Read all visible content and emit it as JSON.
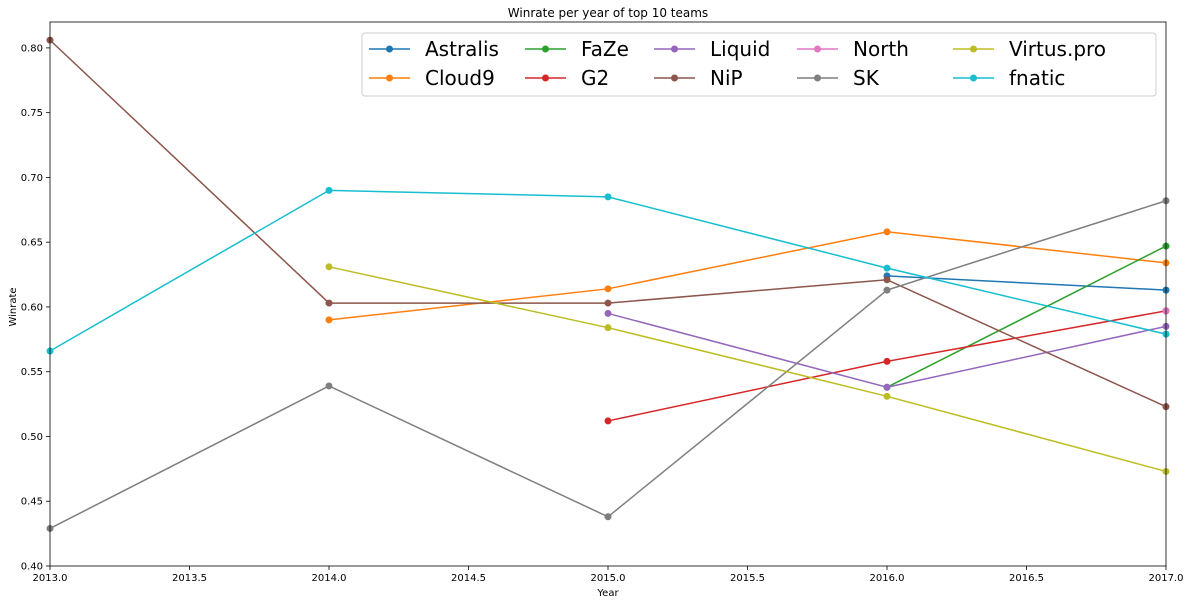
{
  "chart_data": {
    "type": "line",
    "title": "Winrate per year of top 10 teams",
    "xlabel": "Year",
    "ylabel": "Winrate",
    "xlim": [
      2013.0,
      2017.0
    ],
    "ylim": [
      0.4,
      0.82
    ],
    "x_ticks": [
      "2013.0",
      "2013.5",
      "2014.0",
      "2014.5",
      "2015.0",
      "2015.5",
      "2016.0",
      "2016.5",
      "2017.0"
    ],
    "y_ticks": [
      "0.40",
      "0.45",
      "0.50",
      "0.55",
      "0.60",
      "0.65",
      "0.70",
      "0.75",
      "0.80"
    ],
    "grid": false,
    "legend_position": "top-right",
    "series": [
      {
        "name": "Astralis",
        "color": "#1f77b4",
        "x": [
          2016,
          2017
        ],
        "y": [
          0.624,
          0.613
        ]
      },
      {
        "name": "Cloud9",
        "color": "#ff7f0e",
        "x": [
          2014,
          2015,
          2016,
          2017
        ],
        "y": [
          0.59,
          0.614,
          0.658,
          0.634
        ]
      },
      {
        "name": "FaZe",
        "color": "#2ca02c",
        "x": [
          2016,
          2017
        ],
        "y": [
          0.538,
          0.647
        ]
      },
      {
        "name": "G2",
        "color": "#d62728",
        "x": [
          2015,
          2016,
          2017
        ],
        "y": [
          0.512,
          0.558,
          0.597
        ]
      },
      {
        "name": "Liquid",
        "color": "#9467bd",
        "x": [
          2015,
          2016,
          2017
        ],
        "y": [
          0.595,
          0.538,
          0.585
        ]
      },
      {
        "name": "NiP",
        "color": "#8c564b",
        "x": [
          2013,
          2014,
          2015,
          2016,
          2017
        ],
        "y": [
          0.806,
          0.603,
          0.603,
          0.621,
          0.523
        ]
      },
      {
        "name": "North",
        "color": "#e377c2",
        "x": [
          2017
        ],
        "y": [
          0.597
        ]
      },
      {
        "name": "SK",
        "color": "#7f7f7f",
        "x": [
          2013,
          2014,
          2015,
          2016,
          2017
        ],
        "y": [
          0.429,
          0.539,
          0.438,
          0.613,
          0.682
        ]
      },
      {
        "name": "Virtus.pro",
        "color": "#bcbd22",
        "x": [
          2014,
          2015,
          2016,
          2017
        ],
        "y": [
          0.631,
          0.584,
          0.531,
          0.473
        ]
      },
      {
        "name": "fnatic",
        "color": "#17becf",
        "x": [
          2013,
          2014,
          2015,
          2016,
          2017
        ],
        "y": [
          0.566,
          0.69,
          0.685,
          0.63,
          0.579
        ]
      }
    ]
  }
}
